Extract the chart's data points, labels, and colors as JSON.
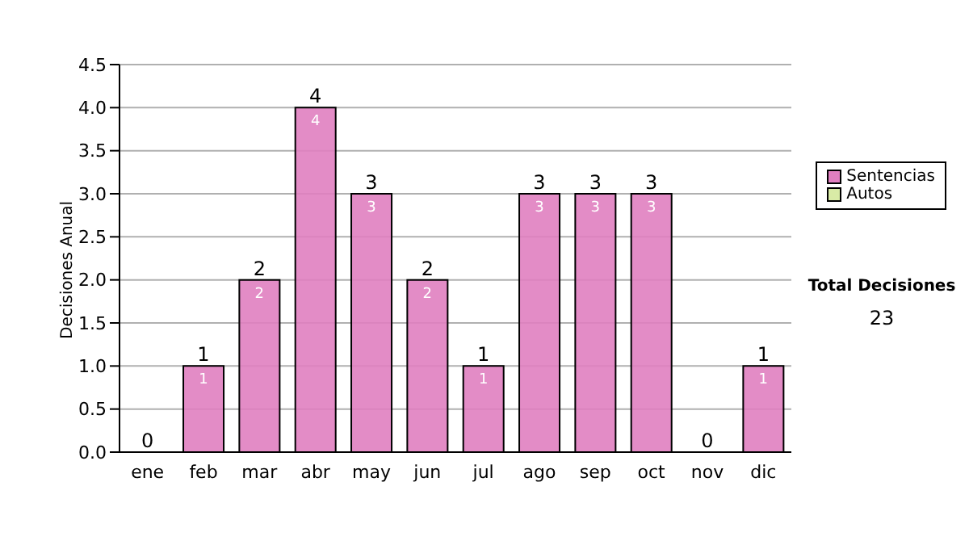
{
  "chart_data": {
    "type": "bar",
    "ylabel": "Decisiones Anual",
    "categories": [
      "ene",
      "feb",
      "mar",
      "abr",
      "may",
      "jun",
      "jul",
      "ago",
      "sep",
      "oct",
      "nov",
      "dic"
    ],
    "series": [
      {
        "name": "Sentencias",
        "color": "#e07fc0",
        "values": [
          0,
          1,
          2,
          4,
          3,
          2,
          1,
          3,
          3,
          3,
          0,
          1
        ],
        "value_labels": [
          null,
          "1",
          "2",
          "4",
          "3",
          "2",
          "1",
          "3",
          "3",
          "3",
          null,
          "1"
        ]
      },
      {
        "name": "Autos",
        "color": "#d9eba6",
        "values": [
          0,
          0,
          0,
          0,
          0,
          0,
          0,
          0,
          0,
          0,
          0,
          0
        ]
      }
    ],
    "stacked": true,
    "totals": [
      "0",
      "1",
      "2",
      "4",
      "3",
      "2",
      "1",
      "3",
      "3",
      "3",
      "0",
      "1"
    ],
    "ylim": [
      0,
      4.5
    ],
    "yticks": [
      {
        "value": 0,
        "label": "0.0"
      },
      0.5,
      {
        "value": 1,
        "label": "1.0"
      },
      1.5,
      {
        "value": 2,
        "label": "2.0"
      },
      2.5,
      {
        "value": 3,
        "label": "3.0"
      },
      3.5,
      {
        "value": 4,
        "label": "4.0"
      },
      4.5
    ],
    "grid": "y",
    "legend": "right",
    "annotations": [
      "Total Decisiones",
      "23"
    ]
  }
}
